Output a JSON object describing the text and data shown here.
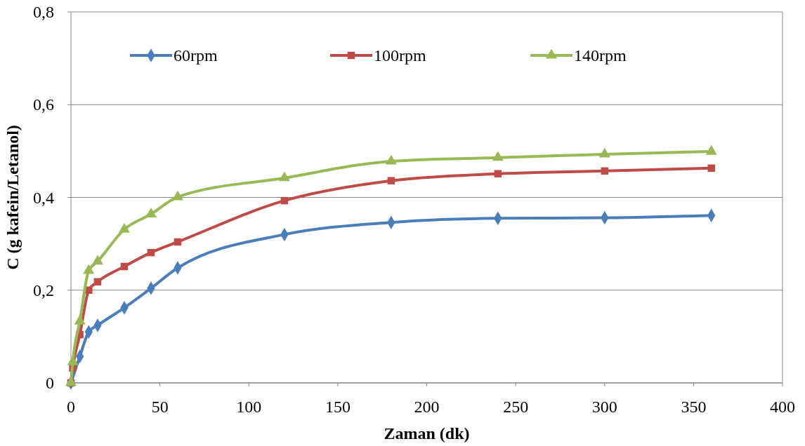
{
  "chart_data": {
    "type": "line",
    "xlabel": "Zaman (dk)",
    "ylabel": "C (g kafein/Letanol)",
    "x": [
      0,
      1,
      5,
      10,
      15,
      30,
      45,
      60,
      120,
      180,
      240,
      300,
      360
    ],
    "series": [
      {
        "name": "60rpm",
        "color": "#4a7ebb",
        "marker": "diamond",
        "values": [
          0,
          null,
          0.057,
          0.11,
          0.124,
          0.162,
          0.204,
          0.248,
          0.32,
          0.346,
          0.355,
          0.356,
          0.361
        ]
      },
      {
        "name": "100rpm",
        "color": "#be4b48",
        "marker": "square",
        "values": [
          0,
          0.032,
          0.104,
          0.2,
          0.218,
          0.251,
          0.281,
          0.304,
          0.393,
          0.436,
          0.451,
          0.457,
          0.463
        ]
      },
      {
        "name": "140rpm",
        "color": "#98b954",
        "marker": "triangle",
        "values": [
          0,
          0.045,
          0.133,
          0.242,
          0.262,
          0.331,
          0.364,
          0.401,
          0.442,
          0.478,
          0.486,
          0.493,
          0.499
        ]
      }
    ],
    "xlim": [
      0,
      400
    ],
    "xticks": [
      0,
      50,
      100,
      150,
      200,
      250,
      300,
      350,
      400
    ],
    "ylim": [
      0,
      0.8
    ],
    "yticks": [
      {
        "value": 0,
        "label": "0"
      },
      {
        "value": 0.2,
        "label": "0,2"
      },
      {
        "value": 0.4,
        "label": "0,4"
      },
      {
        "value": 0.6,
        "label": "0,6"
      },
      {
        "value": 0.8,
        "label": "0,8"
      }
    ],
    "grid": "y",
    "legend": "top"
  }
}
